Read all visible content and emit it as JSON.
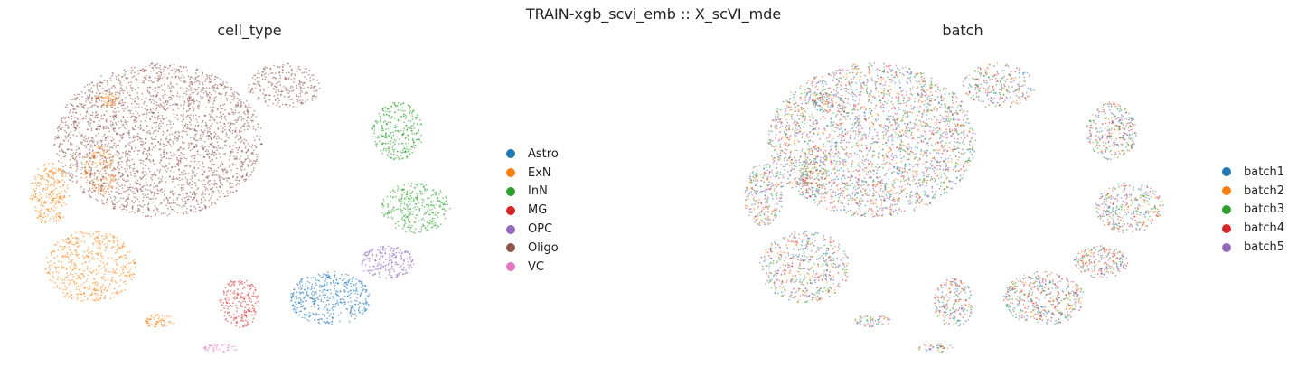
{
  "figure": {
    "title": "TRAIN-xgb_scvi_emb :: X_scVI_mde"
  },
  "chart_data": [
    {
      "type": "scatter",
      "title": "cell_type",
      "xlabel": "",
      "ylabel": "",
      "grid": false,
      "legend_position": "right",
      "series": [
        {
          "name": "Astro",
          "color": "#1f77b4"
        },
        {
          "name": "ExN",
          "color": "#ff7f0e"
        },
        {
          "name": "InN",
          "color": "#2ca02c"
        },
        {
          "name": "MG",
          "color": "#d62728"
        },
        {
          "name": "OPC",
          "color": "#9467bd"
        },
        {
          "name": "Oligo",
          "color": "#8c564b"
        },
        {
          "name": "VC",
          "color": "#e377c2"
        }
      ]
    },
    {
      "type": "scatter",
      "title": "batch",
      "xlabel": "",
      "ylabel": "",
      "grid": false,
      "legend_position": "right",
      "series": [
        {
          "name": "batch1",
          "color": "#1f77b4"
        },
        {
          "name": "batch2",
          "color": "#ff7f0e"
        },
        {
          "name": "batch3",
          "color": "#2ca02c"
        },
        {
          "name": "batch4",
          "color": "#d62728"
        },
        {
          "name": "batch5",
          "color": "#9467bd"
        }
      ]
    }
  ]
}
